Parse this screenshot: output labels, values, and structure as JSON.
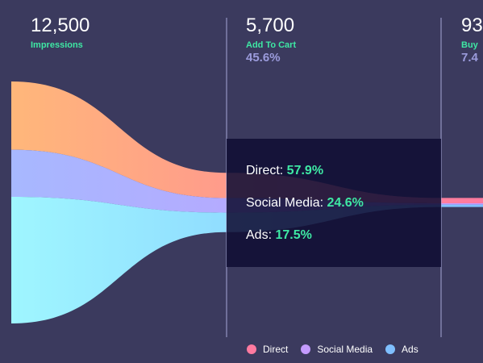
{
  "chart_data": {
    "type": "funnel",
    "stages": [
      {
        "value": "12,500",
        "label": "Impressions",
        "percent": ""
      },
      {
        "value": "5,700",
        "label": "Add To Cart",
        "percent": "45.6%"
      },
      {
        "value": "93",
        "label": "Buy",
        "percent": "7.4"
      }
    ],
    "series": [
      {
        "name": "Direct",
        "values": [
          4.2,
          1.55,
          0.33
        ]
      },
      {
        "name": "Social Media",
        "values": [
          2.9,
          0.9,
          0.08
        ]
      },
      {
        "name": "Ads",
        "values": [
          7.8,
          1.2,
          0.15
        ]
      }
    ],
    "legend": {
      "position": "bottom-right",
      "items": [
        "Direct",
        "Social Media",
        "Ads"
      ]
    },
    "tooltip": {
      "rows": [
        {
          "name": "Direct",
          "value": "57.9%"
        },
        {
          "name": "Social Media",
          "value": "24.6%"
        },
        {
          "name": "Ads",
          "value": "17.5%"
        }
      ]
    },
    "colors": {
      "background": "#3b3a5e",
      "accent": "#3ee8a4",
      "percent": "#9b9bdc",
      "direct": [
        "#ffb77a",
        "#ff7aa0"
      ],
      "social_media": [
        "#a7b8ff",
        "#c49bff"
      ],
      "ads": [
        "#9ff6ff",
        "#7fbfff"
      ]
    }
  }
}
